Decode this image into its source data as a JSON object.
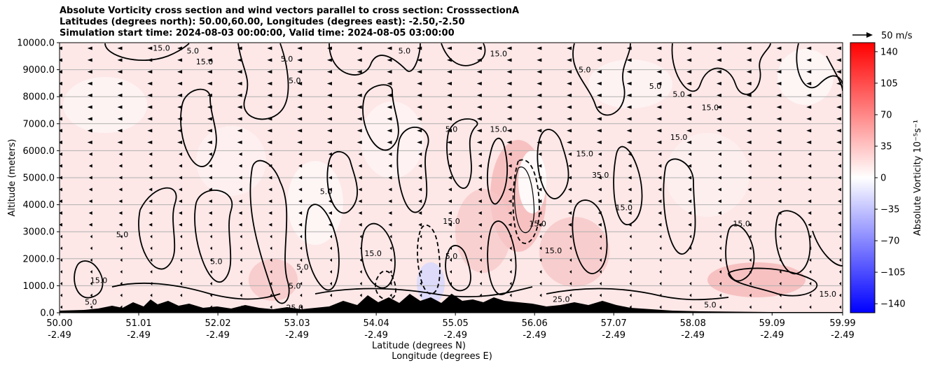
{
  "chart_data": {
    "type": "heatmap",
    "title_lines": [
      "Absolute Vorticity cross section and wind vectors parallel to cross section: CrosssectionA",
      "Latitudes (degrees north): 50.00,60.00, Longitudes (degrees east): -2.50,-2.50",
      "Simulation start time: 2024-08-03 00:00:00, Valid time: 2024-08-05 03:00:00"
    ],
    "xlabel_lines": [
      "Latitude (degrees N)",
      "Longitude (degrees E)"
    ],
    "ylabel": "Altitude (meters)",
    "x_ticks": [
      {
        "lat": "50.00",
        "lon": "-2.49"
      },
      {
        "lat": "51.01",
        "lon": "-2.49"
      },
      {
        "lat": "52.02",
        "lon": "-2.49"
      },
      {
        "lat": "53.03",
        "lon": "-2.49"
      },
      {
        "lat": "54.04",
        "lon": "-2.49"
      },
      {
        "lat": "55.05",
        "lon": "-2.49"
      },
      {
        "lat": "56.06",
        "lon": "-2.49"
      },
      {
        "lat": "57.07",
        "lon": "-2.49"
      },
      {
        "lat": "58.08",
        "lon": "-2.49"
      },
      {
        "lat": "59.09",
        "lon": "-2.49"
      },
      {
        "lat": "59.99",
        "lon": "-2.49"
      }
    ],
    "xlim": [
      50.0,
      59.99
    ],
    "y_ticks": [
      "0.0",
      "1000.0",
      "2000.0",
      "3000.0",
      "4000.0",
      "5000.0",
      "6000.0",
      "7000.0",
      "8000.0",
      "9000.0",
      "10000.0"
    ],
    "ylim": [
      0,
      10000
    ],
    "grid": "horizontal",
    "colorbar": {
      "label": "Absolute Vorticity 10⁻⁵s⁻¹",
      "ticks": [
        "140",
        "105",
        "70",
        "35",
        "0",
        "−35",
        "−70",
        "−105",
        "−140"
      ],
      "range": [
        -150,
        150
      ],
      "colormap": "bwr"
    },
    "contour_levels": [
      -15,
      -5,
      5,
      15,
      25,
      35
    ],
    "contour_labels": [
      {
        "text": "15.0",
        "lat": 51.3,
        "alt": 9800
      },
      {
        "text": "5.0",
        "lat": 51.7,
        "alt": 9700
      },
      {
        "text": "15.0",
        "lat": 51.85,
        "alt": 9300
      },
      {
        "text": "5.0",
        "lat": 52.9,
        "alt": 9400
      },
      {
        "text": "5.0",
        "lat": 53.0,
        "alt": 8600
      },
      {
        "text": "5.0",
        "lat": 54.4,
        "alt": 9700
      },
      {
        "text": "15.0",
        "lat": 55.6,
        "alt": 9600
      },
      {
        "text": "5.0",
        "lat": 56.7,
        "alt": 9000
      },
      {
        "text": "5.0",
        "lat": 57.6,
        "alt": 8400
      },
      {
        "text": "5.0",
        "lat": 57.9,
        "alt": 8100
      },
      {
        "text": "15.0",
        "lat": 58.3,
        "alt": 7600
      },
      {
        "text": "15.0",
        "lat": 57.9,
        "alt": 6500
      },
      {
        "text": "5.0",
        "lat": 55.0,
        "alt": 6800
      },
      {
        "text": "15.0",
        "lat": 55.6,
        "alt": 6800
      },
      {
        "text": "15.0",
        "lat": 56.7,
        "alt": 5900
      },
      {
        "text": "35.0",
        "lat": 56.9,
        "alt": 5100
      },
      {
        "text": "5.0",
        "lat": 53.4,
        "alt": 4500
      },
      {
        "text": "15.0",
        "lat": 57.2,
        "alt": 3900
      },
      {
        "text": "15.0",
        "lat": 55.0,
        "alt": 3400
      },
      {
        "text": "15.0",
        "lat": 56.1,
        "alt": 3300
      },
      {
        "text": "15.0",
        "lat": 58.7,
        "alt": 3300
      },
      {
        "text": "15.0",
        "lat": 56.3,
        "alt": 2300
      },
      {
        "text": "5.0",
        "lat": 55.0,
        "alt": 2100
      },
      {
        "text": "15.0",
        "lat": 50.5,
        "alt": 1200
      },
      {
        "text": "5.0",
        "lat": 50.8,
        "alt": 2900
      },
      {
        "text": "15.0",
        "lat": 54.0,
        "alt": 2200
      },
      {
        "text": "5.0",
        "lat": 53.0,
        "alt": 1000
      },
      {
        "text": "5.0",
        "lat": 50.4,
        "alt": 400
      },
      {
        "text": "25.0",
        "lat": 53.0,
        "alt": 200
      },
      {
        "text": "25.0",
        "lat": 56.4,
        "alt": 500
      },
      {
        "text": "5.0",
        "lat": 58.3,
        "alt": 300
      },
      {
        "text": "15.0",
        "lat": 59.8,
        "alt": 700
      },
      {
        "text": "5.0",
        "lat": 52.0,
        "alt": 1900
      },
      {
        "text": "5.0",
        "lat": 53.1,
        "alt": 1700
      }
    ],
    "wind_vector_key": {
      "label": "50 m/s",
      "speed": 50
    }
  }
}
